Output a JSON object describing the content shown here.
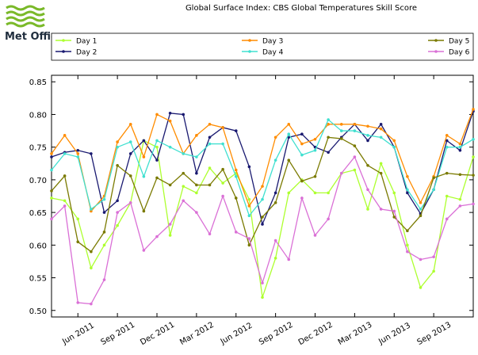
{
  "logo": "Met Office",
  "chart_data": {
    "type": "line",
    "title": "Global Surface Index: CBS Global Temperatures Skill Score",
    "x": [
      "2011-04",
      "2011-05",
      "2011-06",
      "2011-07",
      "2011-08",
      "2011-09",
      "2011-10",
      "2011-11",
      "2011-12",
      "2012-01",
      "2012-02",
      "2012-03",
      "2012-04",
      "2012-05",
      "2012-06",
      "2012-07",
      "2012-08",
      "2012-09",
      "2012-10",
      "2012-11",
      "2012-12",
      "2013-01",
      "2013-02",
      "2013-03",
      "2013-04",
      "2013-05",
      "2013-06",
      "2013-07",
      "2013-08",
      "2013-09",
      "2013-10",
      "2013-11",
      "2013-12"
    ],
    "series": [
      {
        "name": "Day 1",
        "color": "#adff2f",
        "values": [
          0.672,
          0.668,
          0.64,
          0.565,
          0.6,
          0.63,
          0.665,
          0.76,
          0.75,
          0.615,
          0.69,
          0.68,
          0.718,
          0.695,
          0.71,
          0.67,
          0.52,
          0.58,
          0.68,
          0.7,
          0.68,
          0.68,
          0.71,
          0.715,
          0.655,
          0.725,
          0.68,
          0.6,
          0.535,
          0.56,
          0.675,
          0.67,
          0.735
        ]
      },
      {
        "name": "Day 2",
        "color": "#191970",
        "values": [
          0.735,
          0.742,
          0.745,
          0.74,
          0.65,
          0.668,
          0.74,
          0.76,
          0.73,
          0.802,
          0.8,
          0.71,
          0.765,
          0.78,
          0.775,
          0.72,
          0.632,
          0.68,
          0.765,
          0.77,
          0.75,
          0.742,
          0.765,
          0.785,
          0.76,
          0.785,
          0.75,
          0.68,
          0.648,
          0.685,
          0.76,
          0.745,
          0.805
        ]
      },
      {
        "name": "Day 3",
        "color": "#ff8c00",
        "values": [
          0.74,
          0.768,
          0.74,
          0.652,
          0.675,
          0.758,
          0.785,
          0.735,
          0.8,
          0.79,
          0.74,
          0.768,
          0.785,
          0.78,
          0.715,
          0.66,
          0.69,
          0.765,
          0.785,
          0.755,
          0.762,
          0.785,
          0.785,
          0.785,
          0.782,
          0.778,
          0.76,
          0.705,
          0.665,
          0.705,
          0.768,
          0.755,
          0.808
        ]
      },
      {
        "name": "Day 4",
        "color": "#40e0d0",
        "values": [
          0.715,
          0.74,
          0.735,
          0.655,
          0.67,
          0.75,
          0.758,
          0.705,
          0.76,
          0.75,
          0.74,
          0.735,
          0.755,
          0.755,
          0.705,
          0.645,
          0.67,
          0.73,
          0.77,
          0.738,
          0.745,
          0.792,
          0.775,
          0.775,
          0.768,
          0.765,
          0.75,
          0.685,
          0.655,
          0.685,
          0.75,
          0.75,
          0.762
        ]
      },
      {
        "name": "Day 5",
        "color": "#7a7a00",
        "values": [
          0.683,
          0.706,
          0.605,
          0.59,
          0.62,
          0.722,
          0.706,
          0.652,
          0.703,
          0.692,
          0.71,
          0.692,
          0.692,
          0.716,
          0.672,
          0.6,
          0.643,
          0.665,
          0.73,
          0.698,
          0.705,
          0.765,
          0.763,
          0.752,
          0.722,
          0.71,
          0.643,
          0.622,
          0.645,
          0.703,
          0.71,
          0.708,
          0.707
        ]
      },
      {
        "name": "Day 6",
        "color": "#da70d6",
        "values": [
          0.64,
          0.66,
          0.512,
          0.51,
          0.547,
          0.65,
          0.665,
          0.592,
          0.613,
          0.632,
          0.668,
          0.65,
          0.617,
          0.675,
          0.62,
          0.61,
          0.542,
          0.607,
          0.578,
          0.672,
          0.615,
          0.64,
          0.71,
          0.735,
          0.685,
          0.655,
          0.652,
          0.59,
          0.578,
          0.582,
          0.64,
          0.66,
          0.663
        ]
      }
    ],
    "xlim": [
      "2011-04",
      "2013-12"
    ],
    "xticks": [
      {
        "value": "2011-06",
        "label": "Jun 2011"
      },
      {
        "value": "2011-09",
        "label": "Sep 2011"
      },
      {
        "value": "2011-12",
        "label": "Dec 2011"
      },
      {
        "value": "2012-03",
        "label": "Mar 2012"
      },
      {
        "value": "2012-06",
        "label": "Jun 2012"
      },
      {
        "value": "2012-09",
        "label": "Sep 2012"
      },
      {
        "value": "2012-12",
        "label": "Dec 2012"
      },
      {
        "value": "2013-03",
        "label": "Mar 2013"
      },
      {
        "value": "2013-06",
        "label": "Jun 2013"
      },
      {
        "value": "2013-09",
        "label": "Sep 2013"
      }
    ],
    "ylim": [
      0.49,
      0.86
    ],
    "yticks": [
      {
        "value": 0.5,
        "label": "0.50"
      },
      {
        "value": 0.55,
        "label": "0.55"
      },
      {
        "value": 0.6,
        "label": "0.60"
      },
      {
        "value": 0.65,
        "label": "0.65"
      },
      {
        "value": 0.7,
        "label": "0.70"
      },
      {
        "value": 0.75,
        "label": "0.75"
      },
      {
        "value": 0.8,
        "label": "0.80"
      },
      {
        "value": 0.85,
        "label": "0.85"
      }
    ],
    "grid": false,
    "legend": "top"
  }
}
